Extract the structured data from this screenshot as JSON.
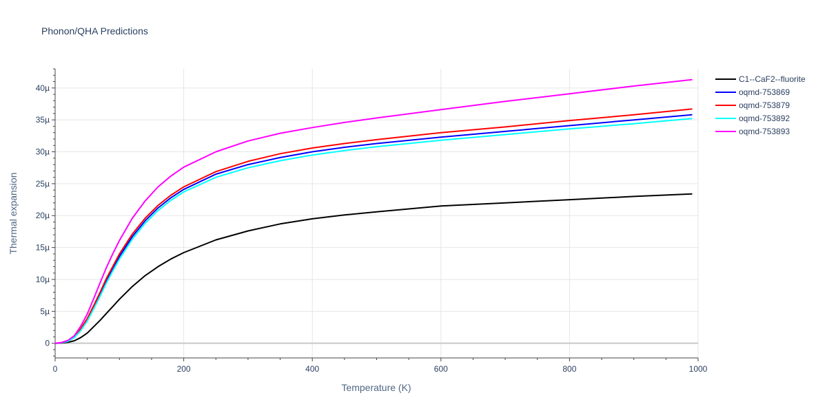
{
  "chart_data": {
    "type": "line",
    "title": "Phonon/QHA Predictions",
    "xlabel": "Temperature (K)",
    "ylabel": "Thermal expansion",
    "xlim": [
      0,
      1000
    ],
    "ylim": [
      -2.3e-06,
      4.3e-05
    ],
    "x_ticks": [
      0,
      200,
      400,
      600,
      800,
      1000
    ],
    "x_tick_labels": [
      "0",
      "200",
      "400",
      "600",
      "800",
      "1000"
    ],
    "y_ticks": [
      0,
      5e-06,
      1e-05,
      1.5e-05,
      2e-05,
      2.5e-05,
      3e-05,
      3.5e-05,
      4e-05
    ],
    "y_tick_labels": [
      "0",
      "5µ",
      "10µ",
      "15µ",
      "20µ",
      "25µ",
      "30µ",
      "35µ",
      "40µ"
    ],
    "grid": true,
    "legend_position": "top-right",
    "x": [
      0,
      10,
      20,
      30,
      40,
      50,
      60,
      70,
      80,
      90,
      100,
      120,
      140,
      160,
      180,
      200,
      250,
      300,
      350,
      400,
      450,
      500,
      600,
      700,
      800,
      900,
      990
    ],
    "series": [
      {
        "name": "C1--CaF2--fluorite",
        "color": "#000000",
        "values": [
          0,
          5e-08,
          1.5e-07,
          4e-07,
          9e-07,
          1.6e-06,
          2.6e-06,
          3.6e-06,
          4.7e-06,
          5.8e-06,
          6.9e-06,
          8.9e-06,
          1.06e-05,
          1.2e-05,
          1.32e-05,
          1.42e-05,
          1.62e-05,
          1.76e-05,
          1.87e-05,
          1.95e-05,
          2.01e-05,
          2.06e-05,
          2.15e-05,
          2.2e-05,
          2.25e-05,
          2.3e-05,
          2.34e-05
        ]
      },
      {
        "name": "oqmd-753869",
        "color": "#0000ff",
        "values": [
          0,
          1e-07,
          3.5e-07,
          1e-06,
          2.2e-06,
          3.8e-06,
          5.7e-06,
          7.8e-06,
          9.9e-06,
          1.18e-05,
          1.36e-05,
          1.67e-05,
          1.92e-05,
          2.12e-05,
          2.28e-05,
          2.41e-05,
          2.65e-05,
          2.8e-05,
          2.91e-05,
          3e-05,
          3.07e-05,
          3.13e-05,
          3.23e-05,
          3.32e-05,
          3.41e-05,
          3.5e-05,
          3.58e-05
        ]
      },
      {
        "name": "oqmd-753879",
        "color": "#ff0000",
        "values": [
          0,
          1e-07,
          3.5e-07,
          1e-06,
          2.3e-06,
          3.9e-06,
          5.9e-06,
          8e-06,
          1.02e-05,
          1.21e-05,
          1.4e-05,
          1.71e-05,
          1.96e-05,
          2.16e-05,
          2.32e-05,
          2.45e-05,
          2.69e-05,
          2.85e-05,
          2.97e-05,
          3.06e-05,
          3.13e-05,
          3.19e-05,
          3.3e-05,
          3.39e-05,
          3.49e-05,
          3.58e-05,
          3.67e-05
        ]
      },
      {
        "name": "oqmd-753892",
        "color": "#00ffff",
        "values": [
          0,
          8e-08,
          3e-07,
          9e-07,
          2e-06,
          3.5e-06,
          5.4e-06,
          7.4e-06,
          9.5e-06,
          1.14e-05,
          1.32e-05,
          1.63e-05,
          1.88e-05,
          2.08e-05,
          2.24e-05,
          2.37e-05,
          2.6e-05,
          2.75e-05,
          2.86e-05,
          2.95e-05,
          3.02e-05,
          3.08e-05,
          3.18e-05,
          3.27e-05,
          3.36e-05,
          3.44e-05,
          3.52e-05
        ]
      },
      {
        "name": "oqmd-753893",
        "color": "#ff00ff",
        "values": [
          0,
          1.2e-07,
          4.5e-07,
          1.2e-06,
          2.7e-06,
          4.6e-06,
          7e-06,
          9.5e-06,
          1.19e-05,
          1.41e-05,
          1.61e-05,
          1.96e-05,
          2.23e-05,
          2.45e-05,
          2.62e-05,
          2.76e-05,
          3e-05,
          3.17e-05,
          3.29e-05,
          3.38e-05,
          3.46e-05,
          3.53e-05,
          3.66e-05,
          3.79e-05,
          3.91e-05,
          4.03e-05,
          4.13e-05
        ]
      }
    ]
  }
}
